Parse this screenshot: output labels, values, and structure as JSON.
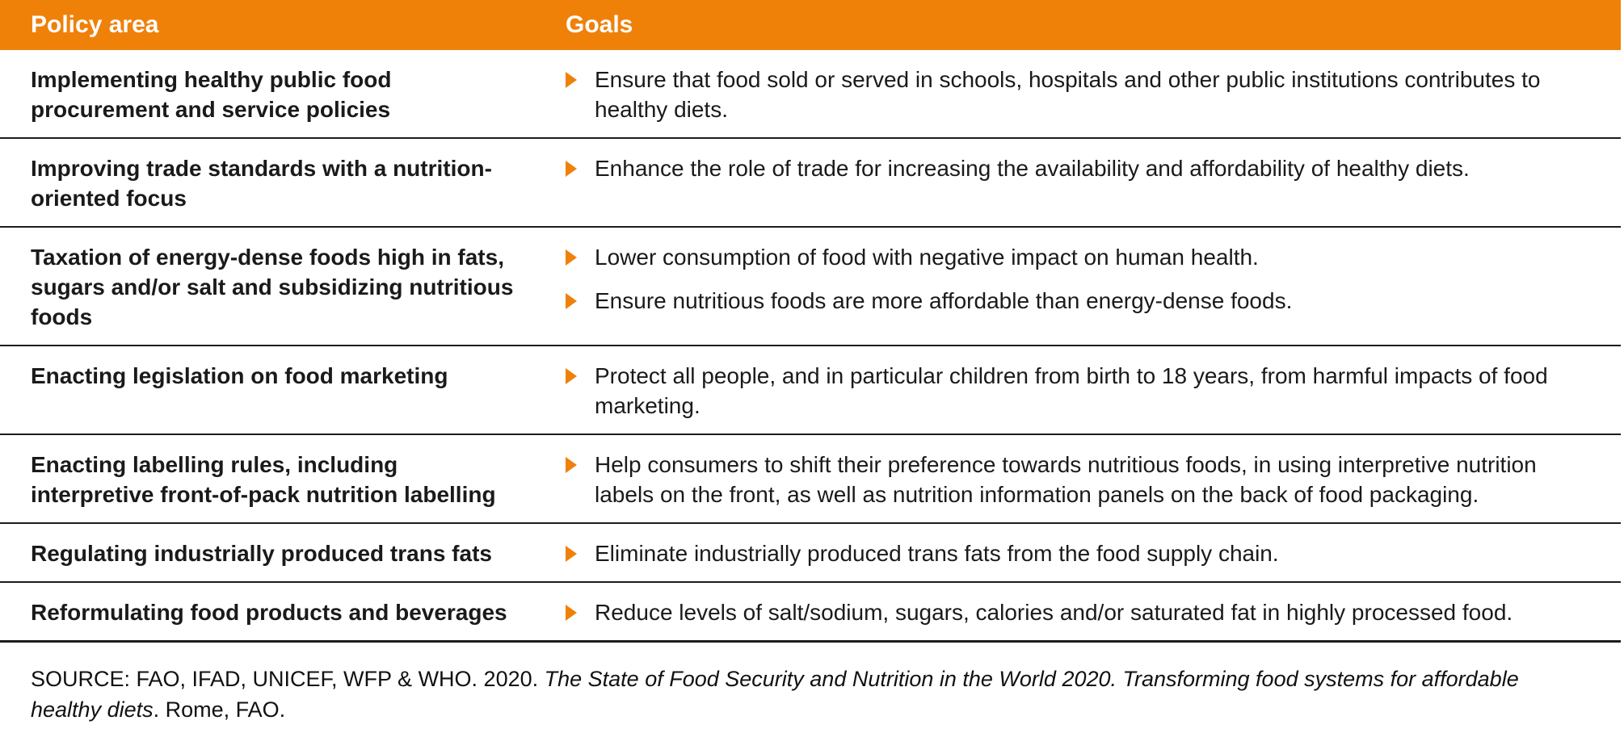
{
  "colors": {
    "accent_orange": "#EF8109",
    "text": "#1A1A1A",
    "rule": "#1C1C1C",
    "header_text": "#FFFFFF"
  },
  "header": {
    "policy_area": "Policy area",
    "goals": "Goals"
  },
  "rows": [
    {
      "policy": "Implementing healthy public food procurement and service policies",
      "goals": [
        "Ensure that food sold or served in schools, hospitals and other public institutions contributes to healthy diets."
      ]
    },
    {
      "policy": "Improving trade standards with a nutrition-oriented focus",
      "goals": [
        "Enhance the role of trade for increasing the availability and affordability of healthy diets."
      ]
    },
    {
      "policy": "Taxation of energy-dense foods high in fats, sugars and/or salt and subsidizing nutritious foods",
      "goals": [
        "Lower consumption of food with negative impact on human health.",
        "Ensure nutritious foods are more affordable than energy-dense foods."
      ]
    },
    {
      "policy": "Enacting legislation on food marketing",
      "goals": [
        "Protect all people, and in particular children from birth to 18 years, from harmful impacts of food marketing."
      ]
    },
    {
      "policy": "Enacting labelling rules, including interpretive front-of-pack nutrition labelling",
      "goals": [
        "Help consumers to shift their preference towards nutritious foods, in using interpretive nutrition labels on the front, as well as nutrition information panels on the back of food packaging."
      ]
    },
    {
      "policy": "Regulating industrially produced trans fats",
      "goals": [
        "Eliminate industrially produced trans fats from the food supply chain."
      ]
    },
    {
      "policy": "Reformulating food products and beverages",
      "goals": [
        "Reduce levels of salt/sodium, sugars, calories and/or saturated fat in highly processed food."
      ]
    }
  ],
  "source": {
    "prefix": "SOURCE: FAO, IFAD, UNICEF, WFP & WHO. 2020. ",
    "title_italic": "The State of Food Security and Nutrition in the World 2020. Transforming food systems for affordable healthy diets",
    "suffix": ". Rome, FAO."
  }
}
